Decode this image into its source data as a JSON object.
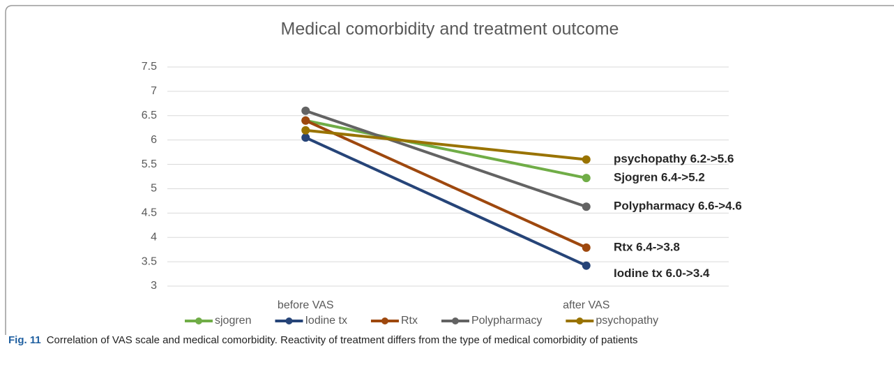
{
  "chart_data": {
    "type": "line",
    "title": "Medical comorbidity and treatment outcome",
    "categories": [
      "before VAS",
      "after VAS"
    ],
    "series": [
      {
        "name": "sjogren",
        "color": "#70ad47",
        "values": [
          6.4,
          5.22
        ]
      },
      {
        "name": "Iodine tx",
        "color": "#264478",
        "values": [
          6.05,
          3.42
        ]
      },
      {
        "name": "Rtx",
        "color": "#9e480e",
        "values": [
          6.4,
          3.79
        ]
      },
      {
        "name": "Polypharmacy",
        "color": "#636363",
        "values": [
          6.6,
          4.63
        ]
      },
      {
        "name": "psychopathy",
        "color": "#997300",
        "values": [
          6.2,
          5.6
        ]
      }
    ],
    "annotations": [
      "Sjogren 6.4->5.2",
      "Iodine tx 6.0->3.4",
      "Rtx 6.4->3.8",
      "Polypharmacy 6.6->4.6",
      "psychopathy 6.2->5.6"
    ],
    "ylim": [
      3,
      7.5
    ],
    "yticks": [
      3,
      3.5,
      4,
      4.5,
      5,
      5.5,
      6,
      6.5,
      7,
      7.5
    ],
    "grid": true,
    "legend": "bottom"
  },
  "caption": {
    "label": "Fig. 11",
    "text": "Correlation of VAS scale and medical comorbidity. Reactivity of treatment differs from the type of medical comorbidity of patients"
  }
}
